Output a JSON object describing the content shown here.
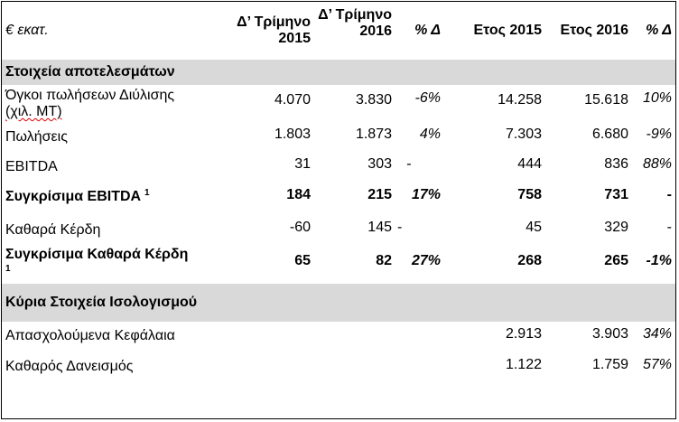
{
  "header": {
    "label": "€ εκατ.",
    "q2015": "Δ’ Τρίμηνο 2015",
    "q2016": "Δ’ Τρίμηνο 2016",
    "pct_q": "% Δ",
    "y2015": "Ετος 2015",
    "y2016": "Ετος 2016",
    "pct_y": "% Δ"
  },
  "sections": {
    "results": "Στοιχεία αποτελεσμάτων",
    "balance": "Κύρια Στοιχεία Ισολογισμού"
  },
  "rows": [
    {
      "label": "Όγκοι πωλήσεων Διύλισης",
      "label2": "(χιλ. ΜΤ)",
      "q2015": "4.070",
      "q2016": "3.830",
      "pct_q": "-6%",
      "y2015": "14.258",
      "y2016": "15.618",
      "pct_y": "10%"
    },
    {
      "label": "Πωλήσεις",
      "q2015": "1.803",
      "q2016": "1.873",
      "pct_q": "4%",
      "y2015": "7.303",
      "y2016": "6.680",
      "pct_y": "-9%"
    },
    {
      "label": "EBITDA",
      "q2015": "31",
      "q2016": "303",
      "pct_q": "-",
      "y2015": "444",
      "y2016": "836",
      "pct_y": "88%"
    },
    {
      "label": "Συγκρίσιμα EBITDA",
      "sup": "1",
      "q2015": "184",
      "q2016": "215",
      "pct_q": "17%",
      "y2015": "758",
      "y2016": "731",
      "pct_y": "-"
    },
    {
      "label": "Καθαρά Κέρδη",
      "q2015": "-60",
      "q2016": "145",
      "pct_q": "-",
      "y2015": "45",
      "y2016": "329",
      "pct_y": "-"
    },
    {
      "label": "Συγκρίσιμα Καθαρά Κέρδη",
      "sup": "1",
      "q2015": "65",
      "q2016": "82",
      "pct_q": "27%",
      "y2015": "268",
      "y2016": "265",
      "pct_y": "-1%"
    },
    {
      "label": "Απασχολούμενα Κεφάλαια",
      "y2015": "2.913",
      "y2016": "3.903",
      "pct_y": "34%"
    },
    {
      "label": "Καθαρός Δανεισμός",
      "y2015": "1.122",
      "y2016": "1.759",
      "pct_y": "57%"
    }
  ]
}
